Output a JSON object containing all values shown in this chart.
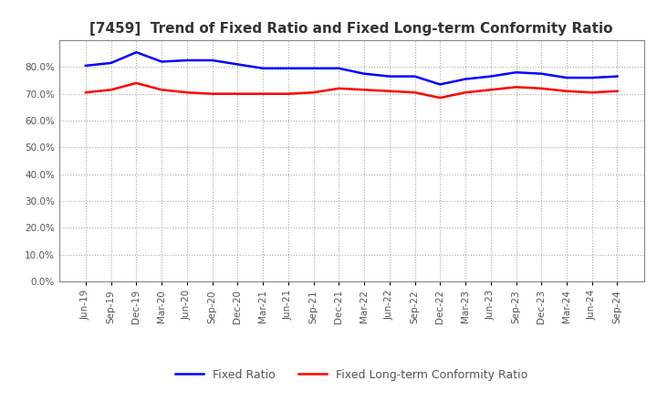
{
  "title": "[7459]  Trend of Fixed Ratio and Fixed Long-term Conformity Ratio",
  "x_labels": [
    "Jun-19",
    "Sep-19",
    "Dec-19",
    "Mar-20",
    "Jun-20",
    "Sep-20",
    "Dec-20",
    "Mar-21",
    "Jun-21",
    "Sep-21",
    "Dec-21",
    "Mar-22",
    "Jun-22",
    "Sep-22",
    "Dec-22",
    "Mar-23",
    "Jun-23",
    "Sep-23",
    "Dec-23",
    "Mar-24",
    "Jun-24",
    "Sep-24"
  ],
  "fixed_ratio": [
    80.5,
    81.5,
    85.5,
    82.0,
    82.5,
    82.5,
    81.0,
    79.5,
    79.5,
    79.5,
    79.5,
    77.5,
    76.5,
    76.5,
    73.5,
    75.5,
    76.5,
    78.0,
    77.5,
    76.0,
    76.0,
    76.5
  ],
  "fixed_lt_ratio": [
    70.5,
    71.5,
    74.0,
    71.5,
    70.5,
    70.0,
    70.0,
    70.0,
    70.0,
    70.5,
    72.0,
    71.5,
    71.0,
    70.5,
    68.5,
    70.5,
    71.5,
    72.5,
    72.0,
    71.0,
    70.5,
    71.0
  ],
  "blue_color": "#0000ff",
  "red_color": "#ff0000",
  "background_color": "#ffffff",
  "grid_color": "#aaaaaa",
  "ylim": [
    0,
    90
  ],
  "yticks": [
    0,
    10,
    20,
    30,
    40,
    50,
    60,
    70,
    80
  ],
  "title_color": "#333333",
  "tick_color": "#555555",
  "legend_fixed_ratio": "Fixed Ratio",
  "legend_fixed_lt_ratio": "Fixed Long-term Conformity Ratio"
}
